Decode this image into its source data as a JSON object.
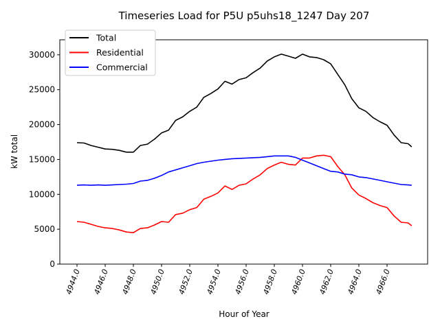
{
  "chart_data": {
    "type": "line",
    "title": "Timeseries Load for P5U p5uhs18_1247  Day 207",
    "xlabel": "Hour of Year",
    "ylabel": "kW total",
    "xlim": [
      4942.78,
      4968.88
    ],
    "ylim": [
      0,
      32150
    ],
    "xticks": [
      4944,
      4946,
      4948,
      4950,
      4952,
      4954,
      4956,
      4958,
      4960,
      4962,
      4964,
      4966
    ],
    "xtick_labels": [
      "4944.0",
      "4946.0",
      "4948.0",
      "4950.0",
      "4952.0",
      "4954.0",
      "4956.0",
      "4958.0",
      "4960.0",
      "4962.0",
      "4964.0",
      "4966.0"
    ],
    "yticks": [
      0,
      5000,
      10000,
      15000,
      20000,
      25000,
      30000
    ],
    "ytick_labels": [
      "0",
      "5000",
      "10000",
      "15000",
      "20000",
      "25000",
      "30000"
    ],
    "grid": false,
    "legend_placement": "top-left",
    "x": [
      4944,
      4944.5,
      4945,
      4945.5,
      4946,
      4946.5,
      4947,
      4947.5,
      4948,
      4948.5,
      4949,
      4949.5,
      4950,
      4950.5,
      4951,
      4951.5,
      4952,
      4952.5,
      4953,
      4953.5,
      4954,
      4954.5,
      4955,
      4955.5,
      4956,
      4956.5,
      4957,
      4957.5,
      4958,
      4958.5,
      4959,
      4959.5,
      4960,
      4960.5,
      4961,
      4961.5,
      4962,
      4962.5,
      4963,
      4963.5,
      4964,
      4964.5,
      4965,
      4965.5,
      4966,
      4966.5,
      4967,
      4967.5,
      4967.75
    ],
    "series": [
      {
        "name": "Total",
        "color": "#000000",
        "values": [
          17400,
          17350,
          17000,
          16750,
          16500,
          16450,
          16300,
          16050,
          16050,
          17000,
          17200,
          17900,
          18800,
          19200,
          20600,
          21100,
          21900,
          22500,
          23900,
          24450,
          25100,
          26200,
          25800,
          26450,
          26700,
          27450,
          28100,
          29100,
          29700,
          30100,
          29800,
          29500,
          30100,
          29700,
          29600,
          29300,
          28700,
          27200,
          25700,
          23700,
          22400,
          21900,
          21000,
          20400,
          19900,
          18500,
          17400,
          17250,
          16800
        ]
      },
      {
        "name": "Residential",
        "color": "#ff0000",
        "values": [
          6100,
          6000,
          5700,
          5400,
          5200,
          5100,
          4900,
          4600,
          4500,
          5100,
          5200,
          5600,
          6100,
          6000,
          7100,
          7300,
          7800,
          8100,
          9300,
          9700,
          10200,
          11200,
          10700,
          11300,
          11500,
          12200,
          12800,
          13700,
          14200,
          14600,
          14300,
          14200,
          15200,
          15200,
          15500,
          15600,
          15400,
          14000,
          12800,
          10900,
          9900,
          9400,
          8800,
          8400,
          8100,
          6900,
          6000,
          5900,
          5500
        ]
      },
      {
        "name": "Commercial",
        "color": "#0000ff",
        "values": [
          11300,
          11350,
          11300,
          11350,
          11300,
          11350,
          11400,
          11450,
          11550,
          11900,
          12000,
          12300,
          12700,
          13200,
          13500,
          13800,
          14100,
          14400,
          14600,
          14750,
          14900,
          15000,
          15100,
          15150,
          15200,
          15250,
          15300,
          15400,
          15500,
          15500,
          15500,
          15300,
          14900,
          14500,
          14100,
          13700,
          13300,
          13200,
          12900,
          12800,
          12500,
          12400,
          12200,
          12000,
          11800,
          11600,
          11400,
          11350,
          11300
        ]
      }
    ]
  }
}
